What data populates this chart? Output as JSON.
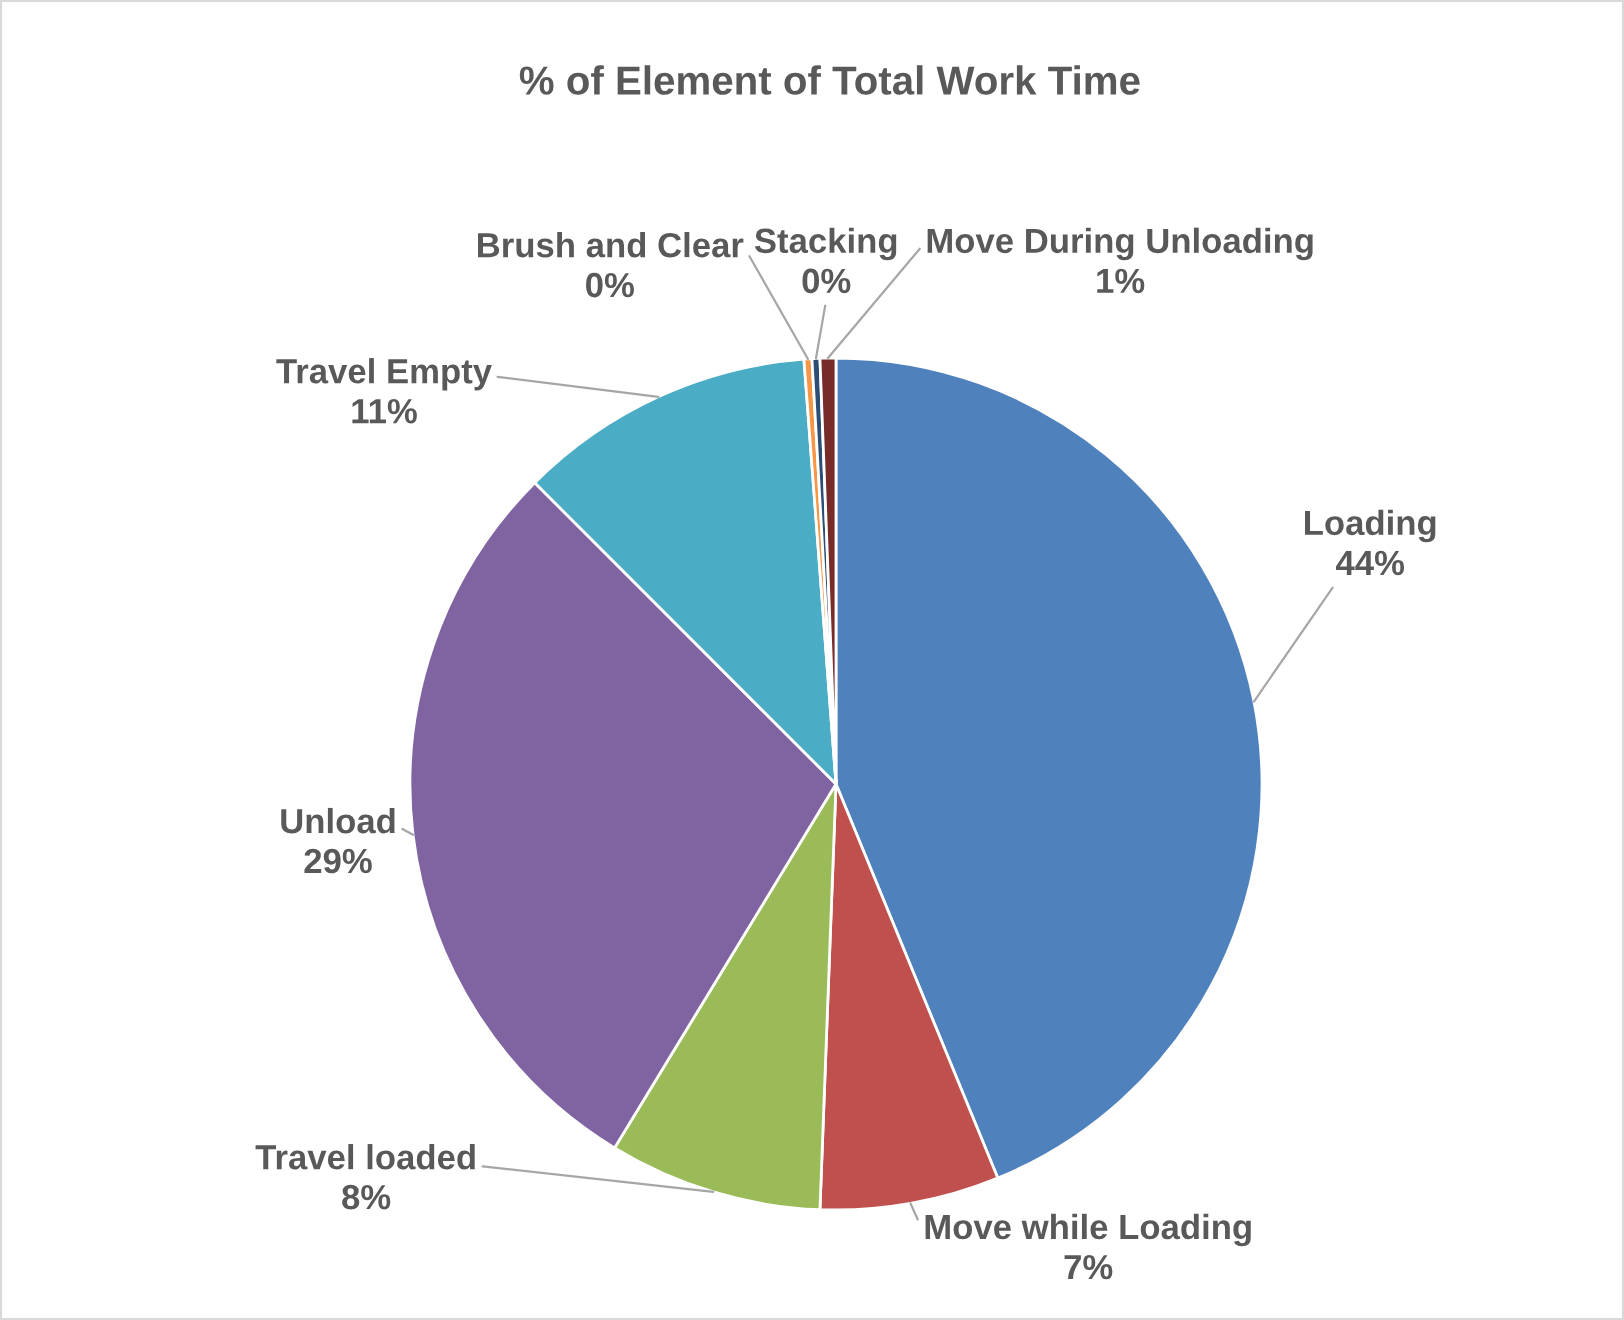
{
  "chart_data": {
    "type": "pie",
    "title": "% of Element of Total Work Time",
    "categories": [
      "Loading",
      "Move while Loading",
      "Travel loaded",
      "Unload",
      "Travel Empty",
      "Brush and Clear",
      "Stacking",
      "Move During Unloading"
    ],
    "values": [
      43.8,
      6.8,
      8.1,
      28.8,
      11.3,
      0.3,
      0.3,
      0.6
    ],
    "value_labels": [
      "44%",
      "7%",
      "8%",
      "29%",
      "11%",
      "0%",
      "0%",
      "1%"
    ],
    "colors": [
      "#4f81bd",
      "#c0504d",
      "#9bbb59",
      "#8064a2",
      "#4bacc6",
      "#f79646",
      "#2c4d75",
      "#772c2a"
    ]
  }
}
